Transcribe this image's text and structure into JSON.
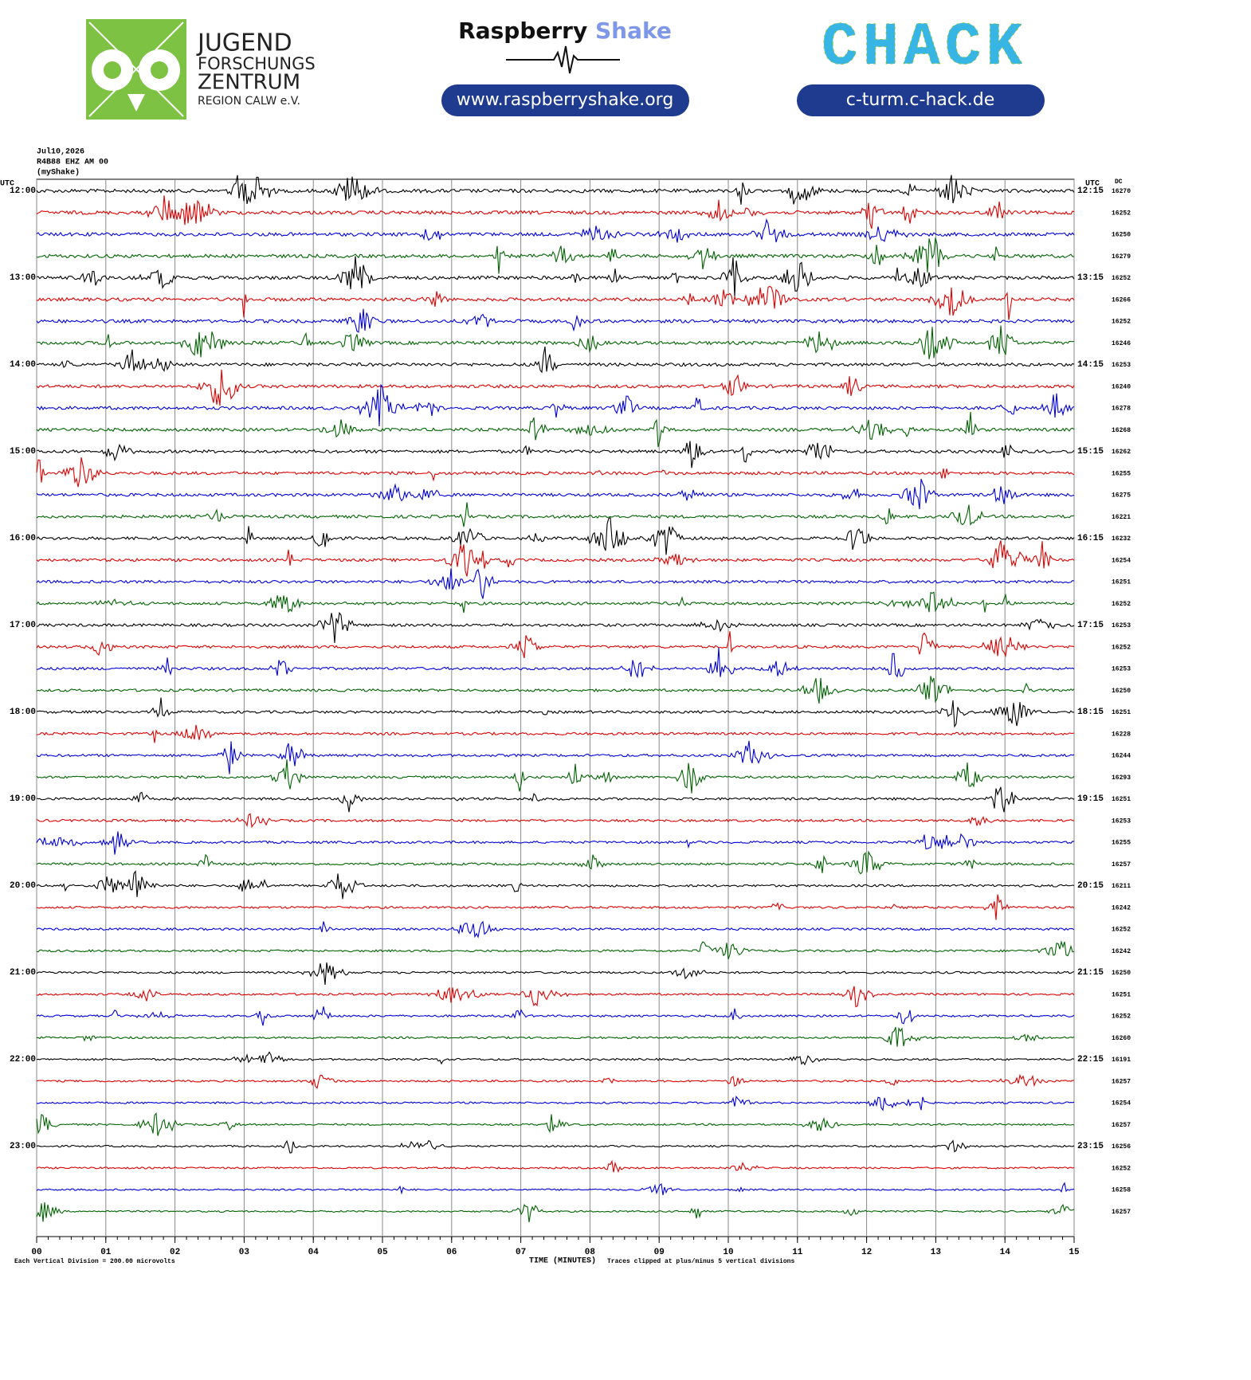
{
  "header": {
    "logo_left": [
      "JUGEND",
      "FORSCHUNGS",
      "ZENTRUM",
      "REGION CALW e.V."
    ],
    "brand_first": "Raspberry",
    "brand_second": "Shake",
    "brand_url": "www.raspberryshake.org",
    "chack": "CHACK",
    "chack_url": "c-turm.c-hack.de"
  },
  "chart_data": {
    "type": "helicorder",
    "title_lines": [
      "Jul10,2026",
      "R4B88 EHZ AM 00",
      "(myShake)"
    ],
    "left_axis_label": "UTC",
    "right_axis_label": "UTC",
    "dc_label": "DC",
    "xlabel": "TIME (MINUTES)",
    "footnote_left": "Each Vertical Division =  200.00 microvolts",
    "footnote_right": "Traces clipped at plus/minus 5 vertical divisions",
    "trace_colors": [
      "#000000",
      "#e00000",
      "#0000e0",
      "#006400"
    ],
    "xlim": [
      0,
      15
    ],
    "xticks": [
      {
        "value": 0,
        "label": "00"
      },
      {
        "value": 1,
        "label": "01"
      },
      {
        "value": 2,
        "label": "02"
      },
      {
        "value": 3,
        "label": "03"
      },
      {
        "value": 4,
        "label": "04"
      },
      {
        "value": 5,
        "label": "05"
      },
      {
        "value": 6,
        "label": "06"
      },
      {
        "value": 7,
        "label": "07"
      },
      {
        "value": 8,
        "label": "08"
      },
      {
        "value": 9,
        "label": "09"
      },
      {
        "value": 10,
        "label": "10"
      },
      {
        "value": 11,
        "label": "11"
      },
      {
        "value": 12,
        "label": "12"
      },
      {
        "value": 13,
        "label": "13"
      },
      {
        "value": 14,
        "label": "14"
      },
      {
        "value": 15,
        "label": "15"
      }
    ],
    "hour_labels": [
      {
        "left": "12:00",
        "right": "12:15"
      },
      {
        "left": "13:00",
        "right": "13:15"
      },
      {
        "left": "14:00",
        "right": "14:15"
      },
      {
        "left": "15:00",
        "right": "15:15"
      },
      {
        "left": "16:00",
        "right": "16:15"
      },
      {
        "left": "17:00",
        "right": "17:15"
      },
      {
        "left": "18:00",
        "right": "18:15"
      },
      {
        "left": "19:00",
        "right": "19:15"
      },
      {
        "left": "20:00",
        "right": "20:15"
      },
      {
        "left": "21:00",
        "right": "21:15"
      },
      {
        "left": "22:00",
        "right": "22:15"
      },
      {
        "left": "23:00",
        "right": "23:15"
      }
    ],
    "dc": [
      16270,
      16252,
      16250,
      16279,
      16252,
      16266,
      16252,
      16246,
      16253,
      16240,
      16278,
      16268,
      16262,
      16255,
      16275,
      16221,
      16232,
      16254,
      16251,
      16252,
      16253,
      16252,
      16253,
      16250,
      16251,
      16228,
      16244,
      16293,
      16251,
      16253,
      16255,
      16257,
      16211,
      16242,
      16252,
      16242,
      16250,
      16251,
      16252,
      16260,
      16191,
      16257,
      16254,
      16257,
      16256,
      16252,
      16258,
      16257
    ]
  }
}
